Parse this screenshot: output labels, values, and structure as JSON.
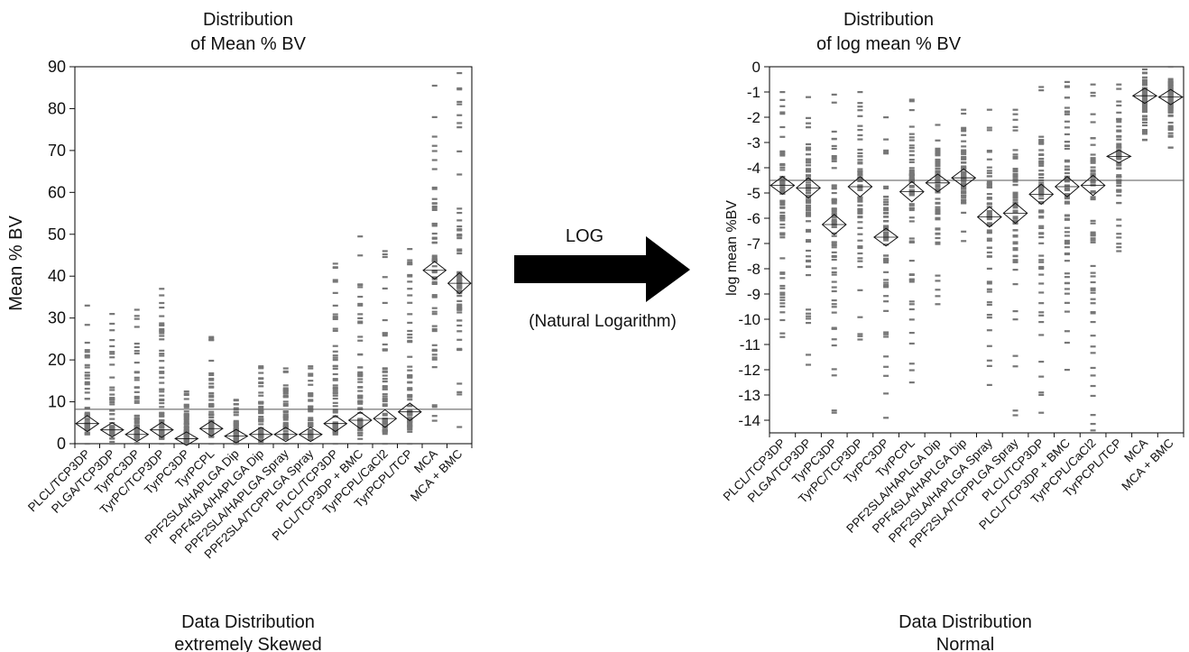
{
  "colors": {
    "ink": "#111111",
    "points": "#777777",
    "frame": "#000000",
    "background": "#ffffff"
  },
  "left": {
    "title_line1": "Distribution",
    "title_line2": "of Mean % BV",
    "caption_line1": "Data Distribution",
    "caption_line2": "extremely Skewed"
  },
  "right": {
    "title_line1": "Distribution",
    "title_line2": "of log mean % BV",
    "caption_line1": "Data Distribution",
    "caption_line2": "Normal"
  },
  "arrow": {
    "label": "LOG",
    "sublabel": "(Natural  Logarithm)",
    "icon": "right-arrow-icon"
  },
  "chart_data": [
    {
      "type": "scatter",
      "variant": "one-way means diamond plot",
      "title": "",
      "xlabel": "",
      "ylabel": "Mean % BV",
      "ylim": [
        0,
        90
      ],
      "yticks": [
        0,
        10,
        20,
        30,
        40,
        50,
        60,
        70,
        80,
        90
      ],
      "grand_mean": 8.2,
      "grid": false,
      "categories": [
        "PLCL/TCP3DP",
        "PLGA/TCP3DP",
        "TyrPC3DP",
        "TyrPC/TCP3DP",
        "TyrPC3DP",
        "TyrPCPL",
        "PPF2SLA/HAPLGA Dip",
        "PPF4SLA/HAPLGA Dip",
        "PPF2SLA/HAPLGA Spray",
        "PPF2SLA/TCPPLGA Spray",
        "PLCL/TCP3DP",
        "PLCL/TCP3DP + BMC",
        "TyrPCPL/CaCl2",
        "TyrPCPL/TCP",
        "MCA",
        "MCA + BMC"
      ],
      "means": [
        4.8,
        3.3,
        2.2,
        3.3,
        1.2,
        3.6,
        1.8,
        2.2,
        2.2,
        2.2,
        4.8,
        5.6,
        6.0,
        7.6,
        41.4,
        38.3
      ],
      "mins": [
        0,
        0,
        0,
        0,
        0,
        0,
        0,
        0,
        0,
        0,
        0,
        0,
        0,
        0,
        5.5,
        4.0
      ],
      "maxs": [
        33,
        31,
        32,
        37,
        12.5,
        25.5,
        10.5,
        18.5,
        18,
        18.5,
        43,
        49.5,
        46,
        46.5,
        85.5,
        88.5
      ],
      "diamond_half_widths": [
        1.9,
        1.7,
        1.7,
        1.8,
        1.6,
        1.8,
        1.6,
        1.7,
        1.7,
        1.7,
        1.9,
        2.0,
        2.1,
        2.1,
        2.1,
        2.5
      ]
    },
    {
      "type": "scatter",
      "variant": "one-way means diamond plot",
      "title": "",
      "xlabel": "",
      "ylabel": "log mean %BV",
      "ylim": [
        -14.5,
        0
      ],
      "yticks": [
        0,
        -1,
        -2,
        -3,
        -4,
        -5,
        -6,
        -7,
        -8,
        -9,
        -10,
        -11,
        -12,
        -13,
        -14
      ],
      "grand_mean": -4.5,
      "grid": false,
      "categories": [
        "PLCL/TCP3DP",
        "PLGA/TCP3DP",
        "TyrPC3DP",
        "TyrPC/TCP3DP",
        "TyrPC3DP",
        "TyrPCPL",
        "PPF2SLA/HAPLGA Dip",
        "PPF4SLA/HAPLGA Dip",
        "PPF2SLA/HAPLGA Spray",
        "PPF2SLA/TCPPLGA Spray",
        "PLCL/TCP3DP",
        "PLCL/TCP3DP + BMC",
        "TyrPCPL/CaCl2",
        "TyrPCPL/TCP",
        "MCA",
        "MCA + BMC"
      ],
      "means": [
        -4.7,
        -4.8,
        -6.25,
        -4.75,
        -6.75,
        -4.95,
        -4.6,
        -4.4,
        -5.95,
        -5.8,
        -5.05,
        -4.75,
        -4.7,
        -3.55,
        -1.15,
        -1.2
      ],
      "mins": [
        -10.7,
        -11.8,
        -13.7,
        -10.8,
        -13.9,
        -12.5,
        -9.4,
        -6.9,
        -12.6,
        -13.8,
        -13.7,
        -12.0,
        -14.4,
        -7.3,
        -2.9,
        -3.2
      ],
      "maxs": [
        -1.0,
        -1.2,
        -1.1,
        -1.0,
        -2.0,
        -1.3,
        -2.3,
        -1.7,
        -1.7,
        -1.7,
        -0.8,
        -0.6,
        -0.7,
        -0.7,
        -0.1,
        0.0
      ],
      "diamond_half_widths": [
        0.35,
        0.4,
        0.4,
        0.4,
        0.35,
        0.4,
        0.35,
        0.35,
        0.4,
        0.4,
        0.4,
        0.4,
        0.4,
        0.25,
        0.3,
        0.3
      ]
    }
  ]
}
